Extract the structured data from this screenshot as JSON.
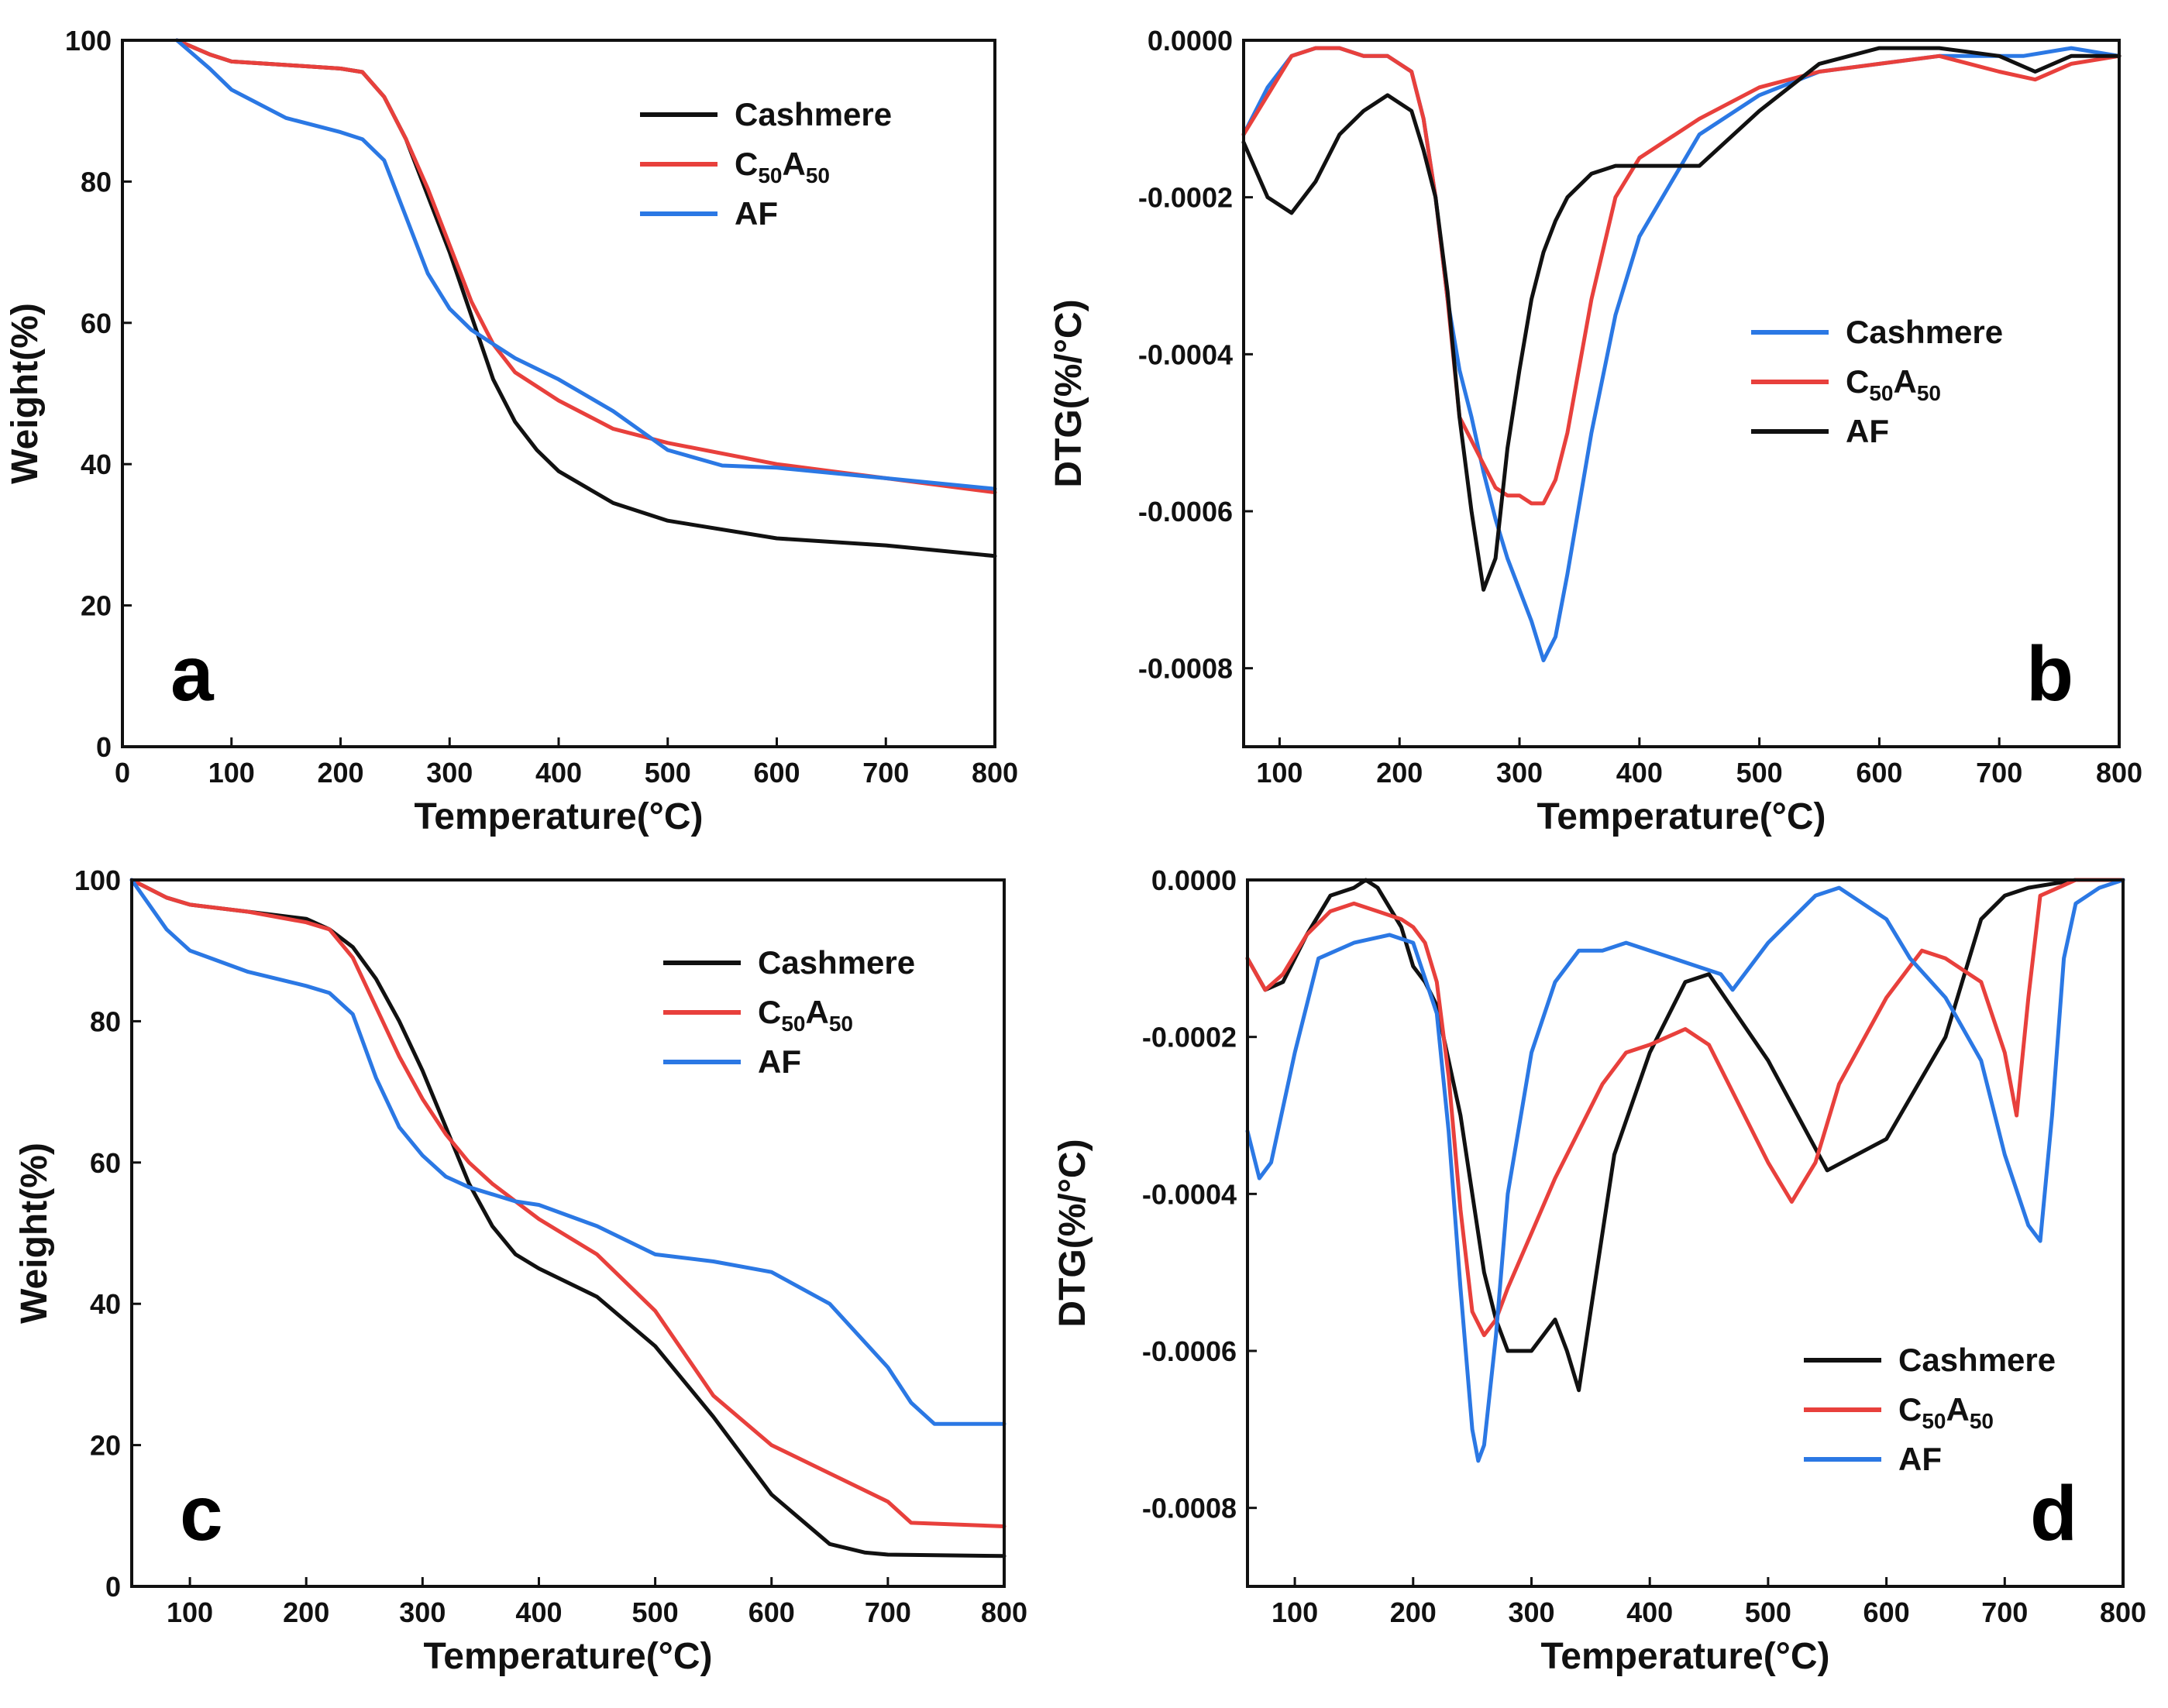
{
  "colors": {
    "Cashmere": "#111111",
    "C50A50": "#e8403c",
    "AF": "#2b78e4"
  },
  "chart_data": [
    {
      "type": "line",
      "panel_label": "a",
      "xlabel": "Temperature(°C)",
      "ylabel": "Weight(%)",
      "xlim": [
        0,
        800
      ],
      "ylim": [
        0,
        100
      ],
      "xticks": [
        0,
        100,
        200,
        300,
        400,
        500,
        600,
        700,
        800
      ],
      "yticks": [
        0,
        20,
        40,
        60,
        80,
        100
      ],
      "ytick_labels": [
        "0",
        "20",
        "40",
        "60",
        "80",
        "100"
      ],
      "legend_position": "top-right",
      "legend": [
        {
          "key": "Cashmere",
          "base": "Cashmere",
          "sub": ""
        },
        {
          "key": "C50A50",
          "base": "C",
          "sub": "50",
          "base2": "A",
          "sub2": "50"
        },
        {
          "key": "AF",
          "base": "AF",
          "sub": ""
        }
      ],
      "series": [
        {
          "name": "Cashmere",
          "x": [
            50,
            80,
            100,
            150,
            200,
            220,
            240,
            260,
            280,
            300,
            320,
            340,
            360,
            380,
            400,
            450,
            500,
            600,
            700,
            800
          ],
          "y": [
            100,
            98,
            97,
            96.5,
            96,
            95.5,
            92,
            86,
            78,
            70,
            61,
            52,
            46,
            42,
            39,
            34.5,
            32,
            29.5,
            28.5,
            27
          ]
        },
        {
          "name": "C50A50",
          "x": [
            50,
            80,
            100,
            150,
            200,
            220,
            240,
            260,
            280,
            300,
            320,
            340,
            360,
            380,
            400,
            450,
            500,
            600,
            650,
            700,
            800
          ],
          "y": [
            100,
            98,
            97,
            96.5,
            96,
            95.5,
            92,
            86,
            79,
            71,
            63,
            57,
            53,
            51,
            49,
            45,
            43,
            40,
            39,
            38,
            36
          ]
        },
        {
          "name": "AF",
          "x": [
            50,
            80,
            100,
            150,
            200,
            220,
            240,
            260,
            280,
            300,
            320,
            340,
            360,
            380,
            400,
            450,
            500,
            550,
            600,
            700,
            800
          ],
          "y": [
            100,
            96,
            93,
            89,
            87,
            86,
            83,
            75,
            67,
            62,
            59,
            57,
            55,
            53.5,
            52,
            47.5,
            42,
            39.8,
            39.5,
            38,
            36.5
          ]
        }
      ]
    },
    {
      "type": "line",
      "panel_label": "b",
      "xlabel": "Temperature(°C)",
      "ylabel": "DTG(%/°C)",
      "xlim": [
        70,
        800
      ],
      "ylim": [
        -0.0009,
        0
      ],
      "xticks": [
        100,
        200,
        300,
        400,
        500,
        600,
        700,
        800
      ],
      "yticks": [
        0,
        -0.0002,
        -0.0004,
        -0.0006,
        -0.0008
      ],
      "ytick_labels": [
        "0.0000",
        "-0.0002",
        "-0.0004",
        "-0.0006",
        "-0.0008"
      ],
      "legend_position": "center-right",
      "legend": [
        {
          "key": "AF",
          "label_series": "Cashmere",
          "base": "Cashmere",
          "sub": ""
        },
        {
          "key": "C50A50",
          "base": "C",
          "sub": "50",
          "base2": "A",
          "sub2": "50"
        },
        {
          "key": "Cashmere",
          "label_series": "AF",
          "base": "AF",
          "sub": ""
        }
      ],
      "series": [
        {
          "name": "Cashmere",
          "color_key": "AF",
          "x": [
            70,
            90,
            110,
            130,
            150,
            170,
            190,
            210,
            220,
            230,
            240,
            250,
            260,
            270,
            280,
            290,
            300,
            310,
            320,
            330,
            340,
            360,
            380,
            400,
            450,
            500,
            550,
            600,
            650,
            700,
            720,
            760,
            800
          ],
          "y": [
            -0.00012,
            -6e-05,
            -2e-05,
            -1e-05,
            -1e-05,
            -2e-05,
            -2e-05,
            -4e-05,
            -0.0001,
            -0.0002,
            -0.00033,
            -0.00042,
            -0.00048,
            -0.00055,
            -0.00061,
            -0.00066,
            -0.0007,
            -0.00074,
            -0.00079,
            -0.00076,
            -0.00068,
            -0.0005,
            -0.00035,
            -0.00025,
            -0.00012,
            -7e-05,
            -4e-05,
            -3e-05,
            -2e-05,
            -2e-05,
            -2e-05,
            -1e-05,
            -2e-05
          ]
        },
        {
          "name": "C50A50",
          "color_key": "C50A50",
          "x": [
            70,
            90,
            110,
            130,
            150,
            170,
            190,
            210,
            220,
            230,
            240,
            250,
            260,
            270,
            280,
            290,
            300,
            310,
            320,
            330,
            340,
            360,
            380,
            400,
            450,
            500,
            550,
            600,
            650,
            700,
            730,
            760,
            800
          ],
          "y": [
            -0.00012,
            -7e-05,
            -2e-05,
            -1e-05,
            -1e-05,
            -2e-05,
            -2e-05,
            -4e-05,
            -0.0001,
            -0.0002,
            -0.00033,
            -0.00048,
            -0.00051,
            -0.00054,
            -0.00057,
            -0.00058,
            -0.00058,
            -0.00059,
            -0.00059,
            -0.00056,
            -0.0005,
            -0.00033,
            -0.0002,
            -0.00015,
            -0.0001,
            -6e-05,
            -4e-05,
            -3e-05,
            -2e-05,
            -4e-05,
            -5e-05,
            -3e-05,
            -2e-05
          ]
        },
        {
          "name": "AF",
          "color_key": "Cashmere",
          "x": [
            70,
            90,
            110,
            130,
            150,
            170,
            190,
            210,
            220,
            230,
            240,
            250,
            260,
            270,
            280,
            290,
            300,
            310,
            320,
            330,
            340,
            360,
            380,
            400,
            450,
            500,
            550,
            600,
            650,
            700,
            730,
            760,
            800
          ],
          "y": [
            -0.00013,
            -0.0002,
            -0.00022,
            -0.00018,
            -0.00012,
            -9e-05,
            -7e-05,
            -9e-05,
            -0.00014,
            -0.0002,
            -0.00032,
            -0.00048,
            -0.0006,
            -0.0007,
            -0.00066,
            -0.00052,
            -0.00042,
            -0.00033,
            -0.00027,
            -0.00023,
            -0.0002,
            -0.00017,
            -0.00016,
            -0.00016,
            -0.00016,
            -9e-05,
            -3e-05,
            -1e-05,
            -1e-05,
            -2e-05,
            -4e-05,
            -2e-05,
            -2e-05
          ]
        }
      ]
    },
    {
      "type": "line",
      "panel_label": "c",
      "xlabel": "Temperature(°C)",
      "ylabel": "Weight(%)",
      "xlim": [
        50,
        800
      ],
      "ylim": [
        0,
        100
      ],
      "xticks": [
        100,
        200,
        300,
        400,
        500,
        600,
        700,
        800
      ],
      "yticks": [
        0,
        20,
        40,
        60,
        80,
        100
      ],
      "ytick_labels": [
        "0",
        "20",
        "40",
        "60",
        "80",
        "100"
      ],
      "legend_position": "top-right",
      "legend": [
        {
          "key": "Cashmere",
          "base": "Cashmere",
          "sub": ""
        },
        {
          "key": "C50A50",
          "base": "C",
          "sub": "50",
          "base2": "A",
          "sub2": "50"
        },
        {
          "key": "AF",
          "base": "AF",
          "sub": ""
        }
      ],
      "series": [
        {
          "name": "Cashmere",
          "x": [
            50,
            80,
            100,
            150,
            200,
            220,
            240,
            260,
            280,
            300,
            320,
            340,
            360,
            380,
            400,
            450,
            500,
            550,
            600,
            650,
            680,
            700,
            800
          ],
          "y": [
            100,
            97.5,
            96.5,
            95.5,
            94.5,
            93,
            90.5,
            86,
            80,
            73,
            65,
            57,
            51,
            47,
            45,
            41,
            34,
            24,
            13,
            6,
            4.8,
            4.5,
            4.3
          ]
        },
        {
          "name": "C50A50",
          "x": [
            50,
            80,
            100,
            150,
            200,
            220,
            240,
            260,
            280,
            300,
            320,
            340,
            360,
            380,
            400,
            450,
            500,
            550,
            600,
            650,
            700,
            720,
            800
          ],
          "y": [
            100,
            97.5,
            96.5,
            95.5,
            94,
            93,
            89,
            82,
            75,
            69,
            64,
            60,
            57,
            54.5,
            52,
            47,
            39,
            27,
            20,
            16,
            12,
            9,
            8.5
          ]
        },
        {
          "name": "AF",
          "x": [
            50,
            80,
            100,
            150,
            200,
            220,
            240,
            260,
            280,
            300,
            320,
            340,
            360,
            380,
            400,
            450,
            500,
            550,
            600,
            650,
            700,
            720,
            740,
            760,
            800
          ],
          "y": [
            100,
            93,
            90,
            87,
            85,
            84,
            81,
            72,
            65,
            61,
            58,
            56.5,
            55.5,
            54.5,
            54,
            51,
            47,
            46,
            44.5,
            40,
            31,
            26,
            23,
            23,
            23
          ]
        }
      ]
    },
    {
      "type": "line",
      "panel_label": "d",
      "xlabel": "Temperature(°C)",
      "ylabel": "DTG(%/°C)",
      "xlim": [
        60,
        800
      ],
      "ylim": [
        -0.0009,
        0
      ],
      "xticks": [
        100,
        200,
        300,
        400,
        500,
        600,
        700,
        800
      ],
      "yticks": [
        0,
        -0.0002,
        -0.0004,
        -0.0006,
        -0.0008
      ],
      "ytick_labels": [
        "0.0000",
        "-0.0002",
        "-0.0004",
        "-0.0006",
        "-0.0008"
      ],
      "legend_position": "bottom-right",
      "legend": [
        {
          "key": "Cashmere",
          "base": "Cashmere",
          "sub": ""
        },
        {
          "key": "C50A50",
          "base": "C",
          "sub": "50",
          "base2": "A",
          "sub2": "50"
        },
        {
          "key": "AF",
          "base": "AF",
          "sub": ""
        }
      ],
      "series": [
        {
          "name": "Cashmere",
          "x": [
            60,
            75,
            90,
            110,
            130,
            150,
            160,
            170,
            190,
            200,
            210,
            220,
            230,
            240,
            250,
            260,
            270,
            280,
            290,
            300,
            310,
            320,
            330,
            340,
            350,
            370,
            400,
            430,
            450,
            500,
            550,
            600,
            650,
            680,
            700,
            720,
            760,
            800
          ],
          "y": [
            -0.0001,
            -0.00014,
            -0.00013,
            -7e-05,
            -2e-05,
            -1e-05,
            0,
            -1e-05,
            -6e-05,
            -0.00011,
            -0.00013,
            -0.00016,
            -0.00023,
            -0.0003,
            -0.0004,
            -0.0005,
            -0.00056,
            -0.0006,
            -0.0006,
            -0.0006,
            -0.00058,
            -0.00056,
            -0.0006,
            -0.00065,
            -0.00055,
            -0.00035,
            -0.00022,
            -0.00013,
            -0.00012,
            -0.00023,
            -0.00037,
            -0.00033,
            -0.0002,
            -5e-05,
            -2e-05,
            -1e-05,
            0,
            0
          ]
        },
        {
          "name": "C50A50",
          "x": [
            60,
            75,
            90,
            110,
            130,
            150,
            170,
            190,
            200,
            210,
            220,
            230,
            240,
            250,
            260,
            270,
            280,
            300,
            320,
            340,
            360,
            380,
            400,
            430,
            450,
            470,
            500,
            520,
            540,
            560,
            600,
            630,
            650,
            680,
            700,
            710,
            720,
            730,
            760,
            800
          ],
          "y": [
            -0.0001,
            -0.00014,
            -0.00012,
            -7e-05,
            -4e-05,
            -3e-05,
            -4e-05,
            -5e-05,
            -6e-05,
            -8e-05,
            -0.00013,
            -0.00025,
            -0.00042,
            -0.00055,
            -0.00058,
            -0.00056,
            -0.00052,
            -0.00045,
            -0.00038,
            -0.00032,
            -0.00026,
            -0.00022,
            -0.00021,
            -0.00019,
            -0.00021,
            -0.00027,
            -0.00036,
            -0.00041,
            -0.00036,
            -0.00026,
            -0.00015,
            -9e-05,
            -0.0001,
            -0.00013,
            -0.00022,
            -0.0003,
            -0.00015,
            -2e-05,
            0,
            0
          ]
        },
        {
          "name": "AF",
          "x": [
            60,
            70,
            80,
            100,
            120,
            150,
            180,
            200,
            220,
            230,
            240,
            250,
            255,
            260,
            270,
            280,
            300,
            320,
            340,
            360,
            380,
            400,
            420,
            440,
            460,
            470,
            480,
            500,
            520,
            540,
            560,
            600,
            620,
            650,
            680,
            700,
            720,
            730,
            740,
            750,
            760,
            780,
            800
          ],
          "y": [
            -0.00032,
            -0.00038,
            -0.00036,
            -0.00022,
            -0.0001,
            -8e-05,
            -7e-05,
            -8e-05,
            -0.00017,
            -0.00032,
            -0.00052,
            -0.0007,
            -0.00074,
            -0.00072,
            -0.00058,
            -0.0004,
            -0.00022,
            -0.00013,
            -9e-05,
            -9e-05,
            -8e-05,
            -9e-05,
            -0.0001,
            -0.00011,
            -0.00012,
            -0.00014,
            -0.00012,
            -8e-05,
            -5e-05,
            -2e-05,
            -1e-05,
            -5e-05,
            -0.0001,
            -0.00015,
            -0.00023,
            -0.00035,
            -0.00044,
            -0.00046,
            -0.0003,
            -0.0001,
            -3e-05,
            -1e-05,
            0
          ]
        }
      ]
    }
  ]
}
